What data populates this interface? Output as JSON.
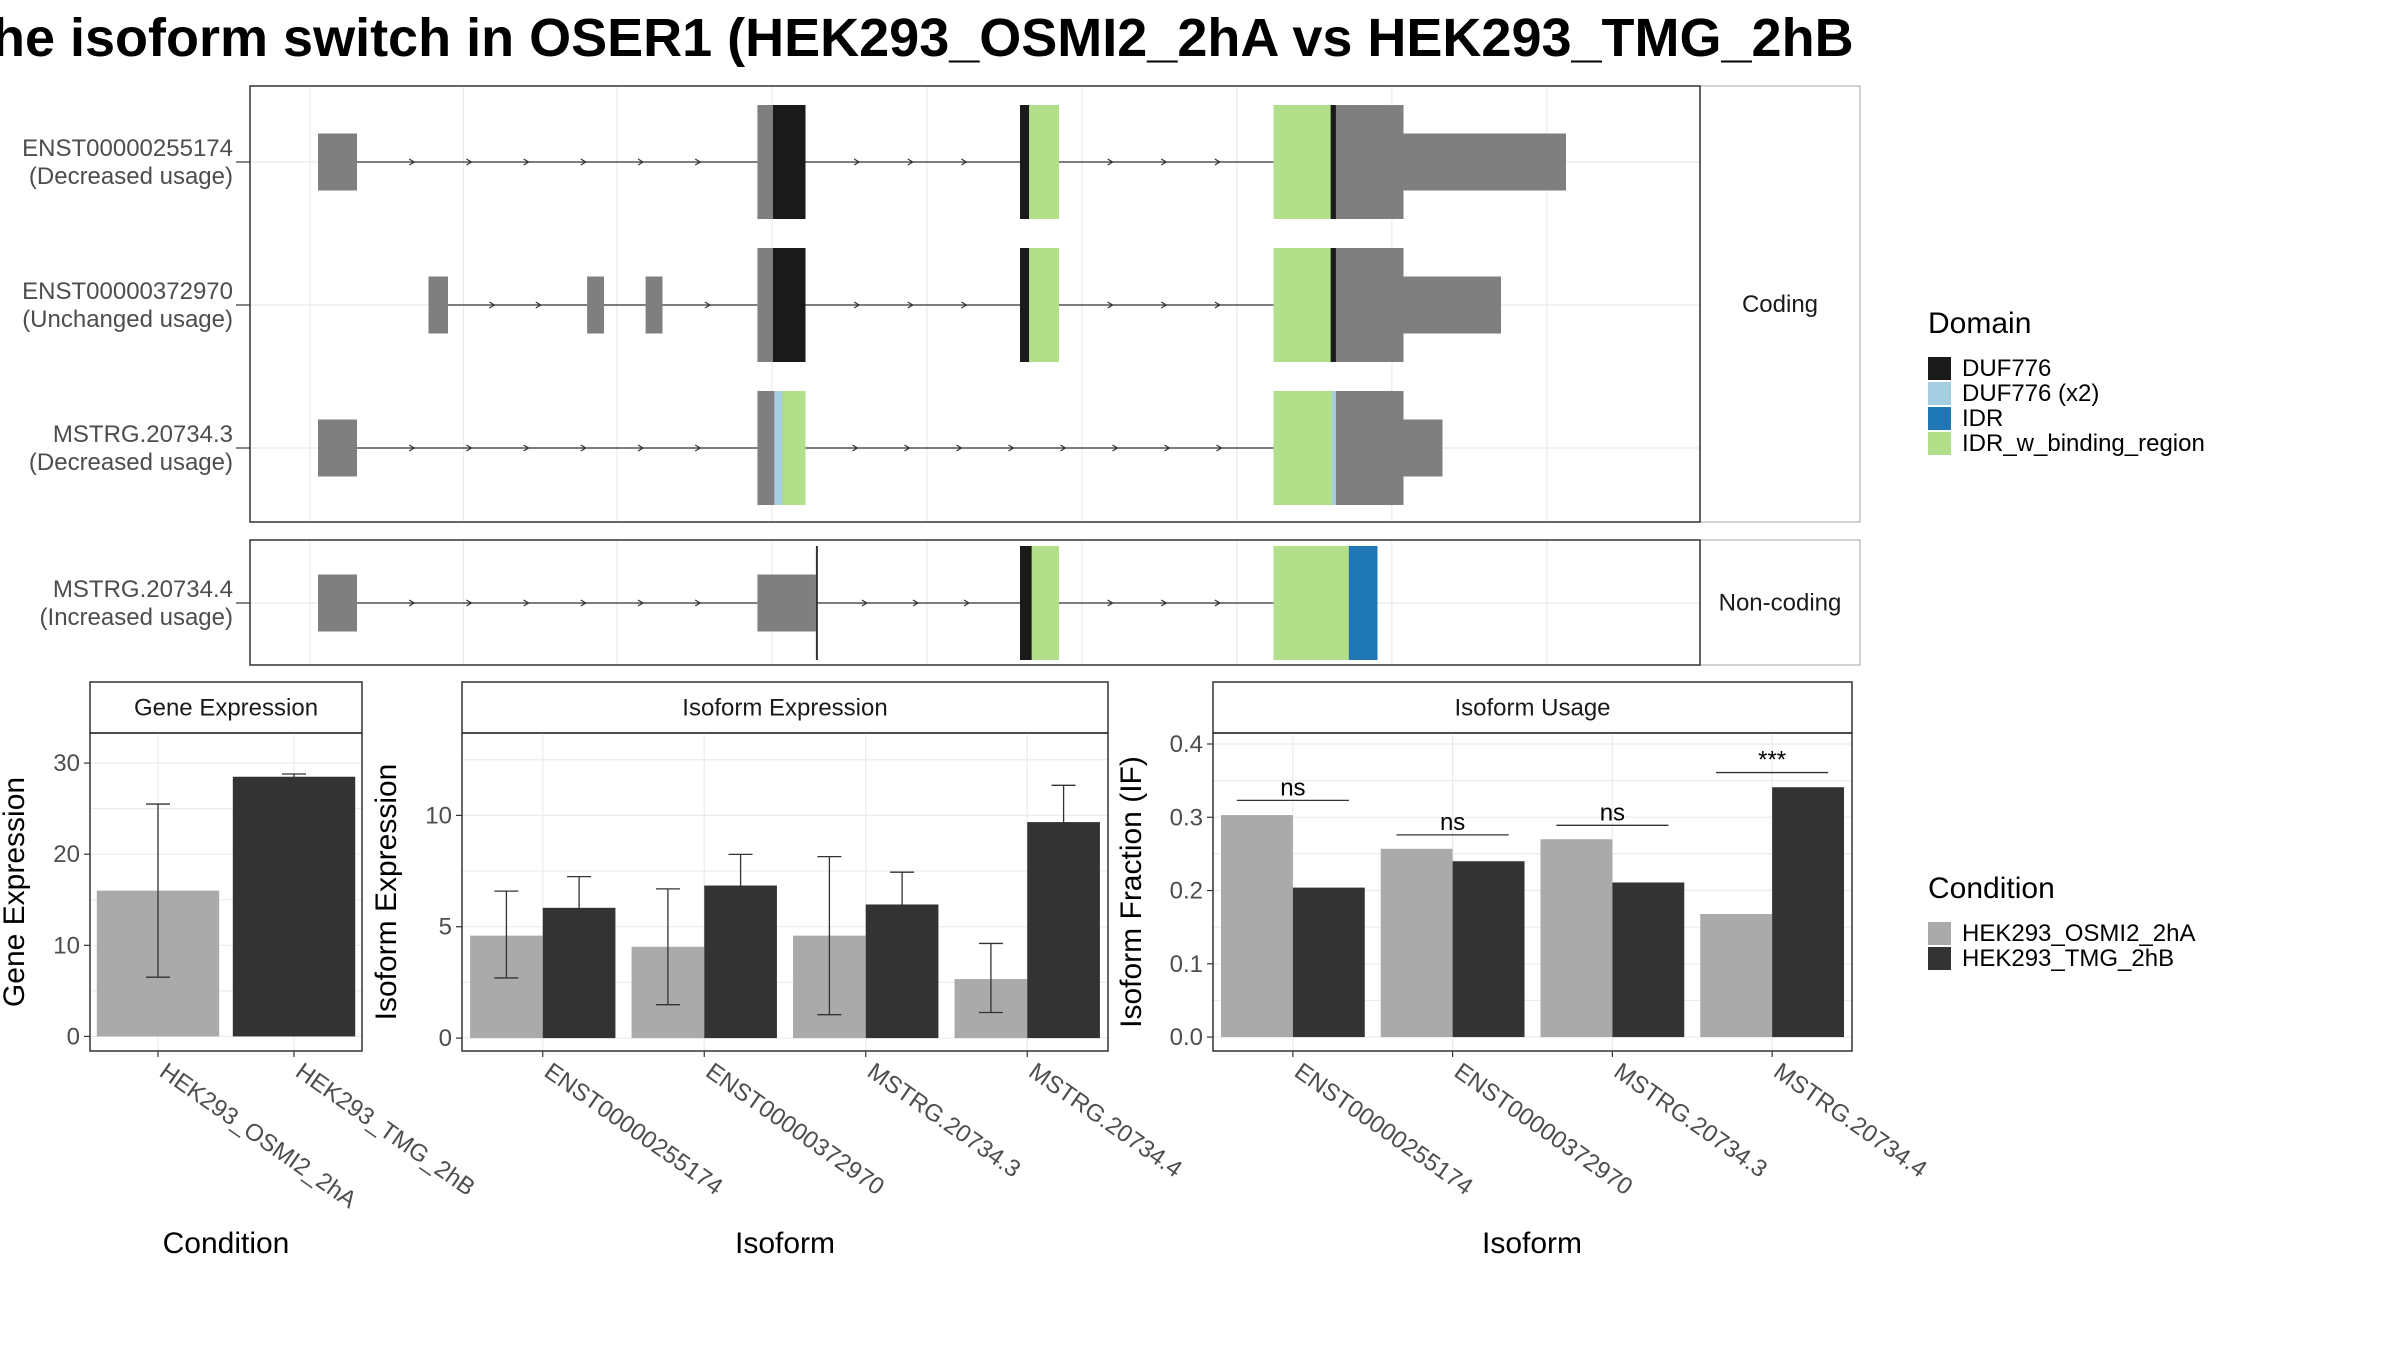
{
  "title": "he isoform switch in OSER1 (HEK293_OSMI2_2hA vs HEK293_TMG_2hB",
  "colors": {
    "exon": "#7f7f7f",
    "intron": "#333333",
    "cond1": "#aaaaaa",
    "cond2": "#333333",
    "DUF776": "#1a1a1a",
    "DUF776_x2": "#a6cee3",
    "IDR": "#1f78b4",
    "IDR_w_binding_region": "#b2df8a"
  },
  "chart_data": [
    {
      "type": "gene-structure",
      "x_range": [
        0,
        1000
      ],
      "facets": [
        {
          "label": "Coding",
          "transcripts": [
            {
              "name": "ENST00000255174",
              "usage": "(Decreased usage)",
              "introns": [
                [
                  40,
                  348
                ],
                [
                  385,
                  550
                ],
                [
                  580,
                  745
                ]
              ],
              "exons": [
                {
                  "s": 10,
                  "e": 40,
                  "t": "utr"
                },
                {
                  "s": 348,
                  "e": 385,
                  "t": "cds"
                },
                {
                  "s": 550,
                  "e": 580,
                  "t": "cds"
                },
                {
                  "s": 745,
                  "e": 845,
                  "t": "cds"
                },
                {
                  "s": 845,
                  "e": 970,
                  "t": "utr"
                }
              ],
              "domains": [
                {
                  "s": 360,
                  "e": 385,
                  "d": "DUF776"
                },
                {
                  "s": 550,
                  "e": 557,
                  "d": "DUF776"
                },
                {
                  "s": 557,
                  "e": 580,
                  "d": "IDR_w_binding_region"
                },
                {
                  "s": 745,
                  "e": 789,
                  "d": "IDR_w_binding_region"
                },
                {
                  "s": 789,
                  "e": 793,
                  "d": "DUF776"
                }
              ]
            },
            {
              "name": "ENST00000372970",
              "usage": "(Unchanged usage)",
              "introns": [
                [
                  110,
                  217
                ],
                [
                  230,
                  262
                ],
                [
                  275,
                  348
                ],
                [
                  385,
                  550
                ],
                [
                  580,
                  745
                ]
              ],
              "exons": [
                {
                  "s": 95,
                  "e": 110,
                  "t": "utr"
                },
                {
                  "s": 217,
                  "e": 230,
                  "t": "utr"
                },
                {
                  "s": 262,
                  "e": 275,
                  "t": "utr"
                },
                {
                  "s": 348,
                  "e": 385,
                  "t": "cds"
                },
                {
                  "s": 550,
                  "e": 580,
                  "t": "cds"
                },
                {
                  "s": 745,
                  "e": 845,
                  "t": "cds"
                },
                {
                  "s": 845,
                  "e": 920,
                  "t": "utr"
                }
              ],
              "domains": [
                {
                  "s": 360,
                  "e": 385,
                  "d": "DUF776"
                },
                {
                  "s": 550,
                  "e": 557,
                  "d": "DUF776"
                },
                {
                  "s": 557,
                  "e": 580,
                  "d": "IDR_w_binding_region"
                },
                {
                  "s": 745,
                  "e": 789,
                  "d": "IDR_w_binding_region"
                },
                {
                  "s": 789,
                  "e": 793,
                  "d": "DUF776"
                }
              ]
            },
            {
              "name": "MSTRG.20734.3",
              "usage": "(Decreased usage)",
              "introns": [
                [
                  40,
                  348
                ],
                [
                  385,
                  745
                ]
              ],
              "exons": [
                {
                  "s": 10,
                  "e": 40,
                  "t": "utr"
                },
                {
                  "s": 348,
                  "e": 385,
                  "t": "cds"
                },
                {
                  "s": 745,
                  "e": 845,
                  "t": "cds"
                },
                {
                  "s": 845,
                  "e": 875,
                  "t": "utr"
                }
              ],
              "domains": [
                {
                  "s": 361,
                  "e": 367,
                  "d": "DUF776_x2"
                },
                {
                  "s": 367,
                  "e": 385,
                  "d": "IDR_w_binding_region"
                },
                {
                  "s": 745,
                  "e": 790,
                  "d": "IDR_w_binding_region"
                },
                {
                  "s": 790,
                  "e": 793,
                  "d": "DUF776_x2"
                }
              ]
            }
          ]
        },
        {
          "label": "Non-coding",
          "transcripts": [
            {
              "name": "MSTRG.20734.4",
              "usage": "(Increased usage)",
              "introns": [
                [
                  40,
                  348
                ],
                [
                  393,
                  550
                ],
                [
                  580,
                  745
                ]
              ],
              "exons": [
                {
                  "s": 10,
                  "e": 40,
                  "t": "utr"
                },
                {
                  "s": 348,
                  "e": 393,
                  "t": "utr"
                },
                {
                  "s": 550,
                  "e": 580,
                  "t": "cds"
                },
                {
                  "s": 745,
                  "e": 825,
                  "t": "cds"
                }
              ],
              "domains": [
                {
                  "s": 550,
                  "e": 559,
                  "d": "DUF776"
                },
                {
                  "s": 559,
                  "e": 580,
                  "d": "IDR_w_binding_region"
                },
                {
                  "s": 745,
                  "e": 803,
                  "d": "IDR_w_binding_region"
                },
                {
                  "s": 803,
                  "e": 825,
                  "d": "IDR"
                }
              ]
            }
          ]
        }
      ]
    },
    {
      "type": "bar",
      "facet_label": "Gene Expression",
      "xlabel": "Condition",
      "ylabel": "Gene Expression",
      "categories": [
        "HEK293_OSMI2_2hA",
        "HEK293_TMG_2hB"
      ],
      "values": [
        16.0,
        28.5
      ],
      "err_low": [
        6.5,
        28.2
      ],
      "err_high": [
        25.5,
        28.8
      ],
      "ylim": [
        -1.6,
        33.3
      ],
      "yticks": [
        0,
        10,
        20,
        30
      ]
    },
    {
      "type": "bar",
      "facet_label": "Isoform Expression",
      "xlabel": "Isoform",
      "ylabel": "Isoform Expression",
      "categories": [
        "ENST00000255174",
        "ENST00000372970",
        "MSTRG.20734.3",
        "MSTRG.20734.4"
      ],
      "series": [
        {
          "name": "HEK293_OSMI2_2hA",
          "values": [
            4.6,
            4.1,
            4.6,
            2.65
          ],
          "err_low": [
            2.7,
            1.5,
            1.05,
            1.15
          ],
          "err_high": [
            6.6,
            6.7,
            8.15,
            4.25
          ]
        },
        {
          "name": "HEK293_TMG_2hB",
          "values": [
            5.85,
            6.85,
            6.0,
            9.7
          ],
          "err_low": [
            4.45,
            5.45,
            4.6,
            8.05
          ],
          "err_high": [
            7.25,
            8.25,
            7.45,
            11.35
          ]
        }
      ],
      "ylim": [
        -0.58,
        13.7
      ],
      "yticks": [
        0,
        5,
        10
      ]
    },
    {
      "type": "bar",
      "facet_label": "Isoform Usage",
      "xlabel": "Isoform",
      "ylabel": "Isoform Fraction (IF)",
      "categories": [
        "ENST00000255174",
        "ENST00000372970",
        "MSTRG.20734.3",
        "MSTRG.20734.4"
      ],
      "series": [
        {
          "name": "HEK293_OSMI2_2hA",
          "values": [
            0.303,
            0.257,
            0.27,
            0.168
          ]
        },
        {
          "name": "HEK293_TMG_2hB",
          "values": [
            0.204,
            0.24,
            0.211,
            0.341
          ]
        }
      ],
      "significance": [
        "ns",
        "ns",
        "ns",
        "***"
      ],
      "sig_level": [
        0.323,
        0.276,
        0.289,
        0.361
      ],
      "ylim": [
        -0.019,
        0.415
      ],
      "yticks": [
        0.0,
        0.1,
        0.2,
        0.3,
        0.4
      ]
    }
  ],
  "legend_domain": {
    "title": "Domain",
    "items": [
      {
        "label": "DUF776",
        "key": "DUF776"
      },
      {
        "label": "DUF776 (x2)",
        "key": "DUF776_x2"
      },
      {
        "label": "IDR",
        "key": "IDR"
      },
      {
        "label": "IDR_w_binding_region",
        "key": "IDR_w_binding_region"
      }
    ]
  },
  "legend_condition": {
    "title": "Condition",
    "items": [
      {
        "label": "HEK293_OSMI2_2hA",
        "key": "cond1"
      },
      {
        "label": "HEK293_TMG_2hB",
        "key": "cond2"
      }
    ]
  }
}
